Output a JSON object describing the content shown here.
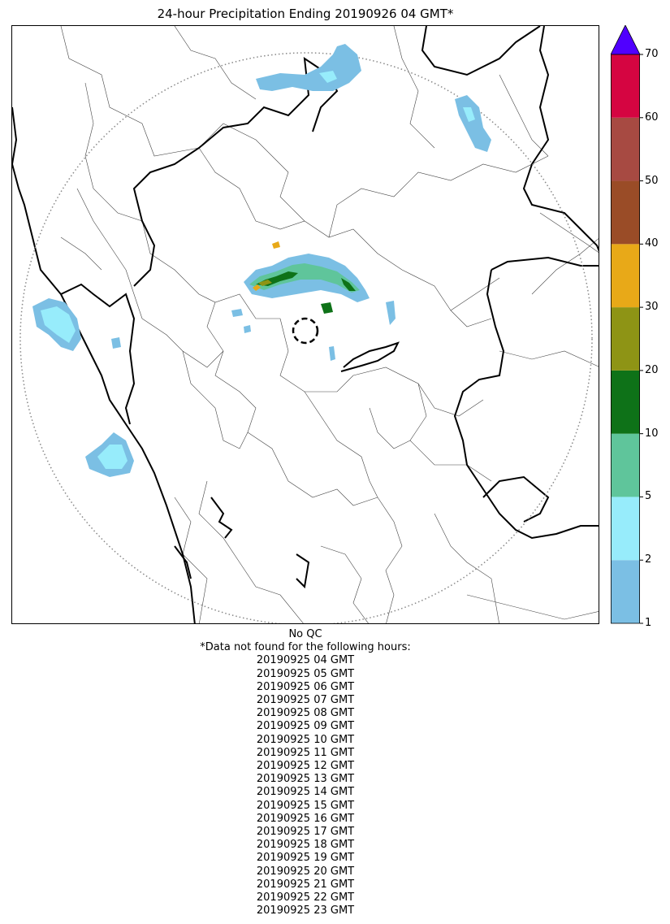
{
  "title": "24-hour Precipitation Ending 20190926 04 GMT*",
  "colorbar": {
    "tick_labels": [
      "1",
      "2",
      "5",
      "10",
      "20",
      "30",
      "40",
      "50",
      "60",
      "70"
    ],
    "segment_colors": [
      "#7bbfe4",
      "#97ecfb",
      "#5fc59b",
      "#0e7218",
      "#8e9415",
      "#e8a918",
      "#9a4c27",
      "#a74a42",
      "#d50541"
    ],
    "extend_color": "#5000ff"
  },
  "notes": {
    "qc": "No QC",
    "missing_header": "*Data not found for the following hours:",
    "missing_hours": [
      "20190925 04 GMT",
      "20190925 05 GMT",
      "20190925 06 GMT",
      "20190925 07 GMT",
      "20190925 08 GMT",
      "20190925 09 GMT",
      "20190925 10 GMT",
      "20190925 11 GMT",
      "20190925 12 GMT",
      "20190925 13 GMT",
      "20190925 14 GMT",
      "20190925 15 GMT",
      "20190925 16 GMT",
      "20190925 17 GMT",
      "20190925 18 GMT",
      "20190925 19 GMT",
      "20190925 20 GMT",
      "20190925 21 GMT",
      "20190925 22 GMT",
      "20190925 23 GMT"
    ]
  },
  "map": {
    "range_ring": "dotted",
    "radar_marker": "dashed-circle",
    "coastline_color": "#000000",
    "district_color": "#444444"
  }
}
